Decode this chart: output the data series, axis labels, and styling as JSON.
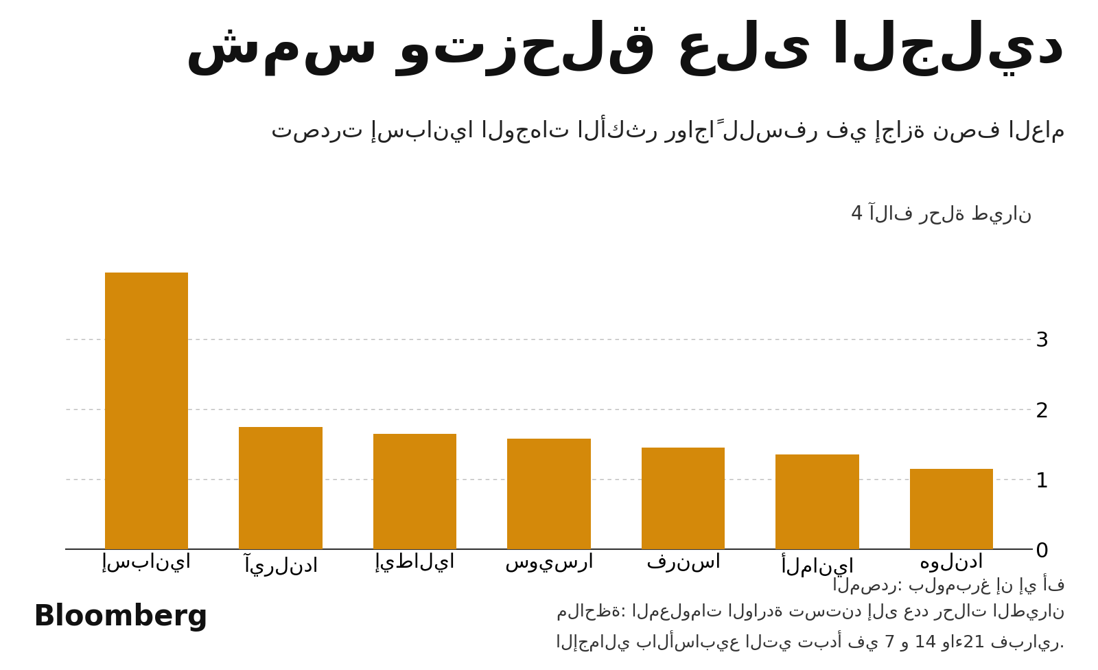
{
  "title": "شمس وتزحلق على الجليد",
  "subtitle": "تصدرت إسبانيا الوجهات الأكثر رواجاً للسفر في إجازة نصف العام",
  "ylabel_text": "4 آلاف رحلة طيران",
  "categories": [
    "إسبانيا",
    "آيرلندا",
    "إيطاليا",
    "سويسرا",
    "فرنسا",
    "ألمانيا",
    "هولندا"
  ],
  "values": [
    3.95,
    1.75,
    1.65,
    1.58,
    1.45,
    1.35,
    1.15
  ],
  "bar_color": "#D4890A",
  "background_color": "#FFFFFF",
  "yticks": [
    0,
    1,
    2,
    3
  ],
  "ylim": [
    0,
    4.3
  ],
  "grid_color": "#BBBBBB",
  "source_line1": "المصدر: بلومبرغ إن إي أف",
  "source_line2": "ملاحظة: المعلومات الواردة تستند إلى عدد رحلات الطيران",
  "source_line3": "الإجمالي بالأسابيع التي تبدأ في 7 و 14 واء21 فبراير.",
  "bloomberg_text": "Bloomberg"
}
